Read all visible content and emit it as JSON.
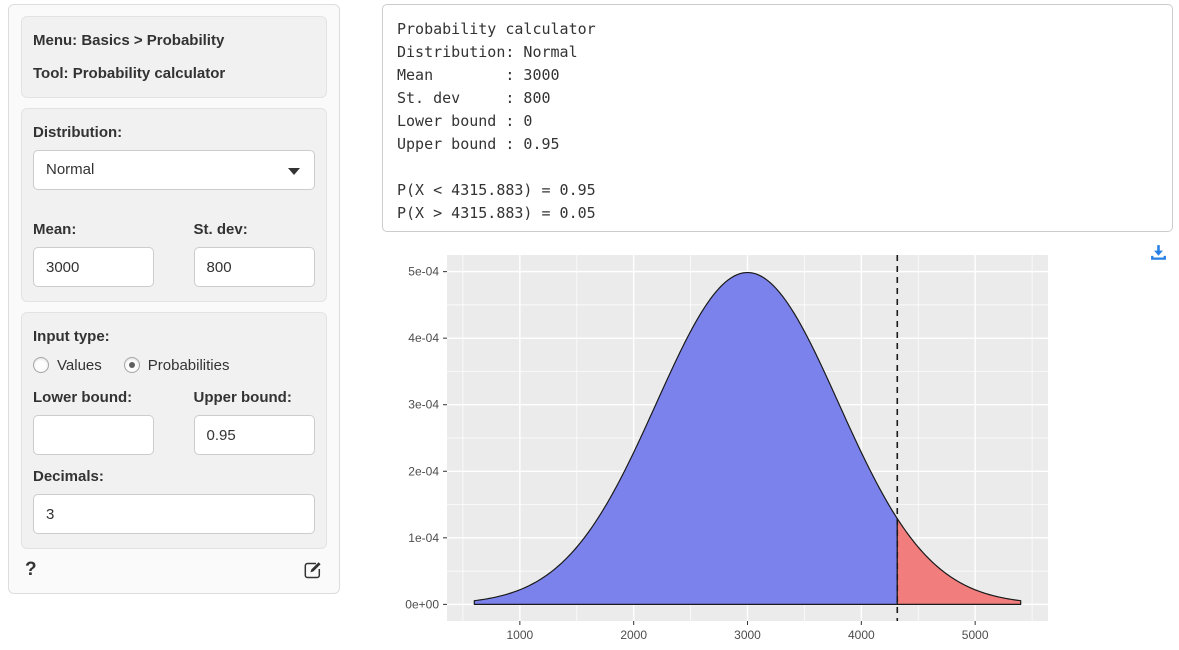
{
  "sidebar": {
    "summary": {
      "menu_label": "Menu: Basics > Probability",
      "tool_label": "Tool: Probability calculator"
    },
    "distribution": {
      "label": "Distribution:",
      "selected": "Normal"
    },
    "mean": {
      "label": "Mean:",
      "value": "3000"
    },
    "stdev": {
      "label": "St. dev:",
      "value": "800"
    },
    "input_type": {
      "label": "Input type:",
      "options": [
        {
          "label": "Values",
          "selected": false
        },
        {
          "label": "Probabilities",
          "selected": true
        }
      ]
    },
    "lower_bound": {
      "label": "Lower bound:",
      "value": ""
    },
    "upper_bound": {
      "label": "Upper bound:",
      "value": "0.95"
    },
    "decimals": {
      "label": "Decimals:",
      "value": "3"
    },
    "help_label": "?"
  },
  "output": {
    "text": "Probability calculator\nDistribution: Normal\nMean        : 3000\nSt. dev     : 800\nLower bound : 0\nUpper bound : 0.95\n\nP(X < 4315.883) = 0.95\nP(X > 4315.883) = 0.05"
  },
  "chart_data": {
    "type": "area",
    "title": "",
    "xlabel": "",
    "ylabel": "",
    "distribution": "normal",
    "mean": 3000,
    "st_dev": 800,
    "peak_density": 0.0004987,
    "curve_x_range": [
      600,
      5400
    ],
    "cutoff": 4315.883,
    "regions": [
      {
        "name": "P(X < 4315.883)",
        "probability": 0.95,
        "fill": "#7c82ec"
      },
      {
        "name": "P(X > 4315.883)",
        "probability": 0.05,
        "fill": "#f27d7d"
      }
    ],
    "vline": {
      "x": 4315.883,
      "style": "dashed",
      "color": "#1a1a1a"
    },
    "x_ticks": [
      {
        "value": 1000,
        "label": "1000"
      },
      {
        "value": 2000,
        "label": "2000"
      },
      {
        "value": 3000,
        "label": "3000"
      },
      {
        "value": 4000,
        "label": "4000"
      },
      {
        "value": 5000,
        "label": "5000"
      }
    ],
    "y_ticks": [
      {
        "value": 0.0,
        "label": "0e+00"
      },
      {
        "value": 0.0001,
        "label": "1e-04"
      },
      {
        "value": 0.0002,
        "label": "2e-04"
      },
      {
        "value": 0.0003,
        "label": "3e-04"
      },
      {
        "value": 0.0004,
        "label": "4e-04"
      },
      {
        "value": 0.0005,
        "label": "5e-04"
      }
    ],
    "xlim": [
      360,
      5640
    ],
    "ylim": [
      -2.5e-05,
      0.000525
    ],
    "grid": true,
    "legend": false,
    "panel_bg": "#ebebeb",
    "grid_color": "#ffffff",
    "curve_color": "#1a1a1a",
    "accent_blue": "#2780e3"
  }
}
